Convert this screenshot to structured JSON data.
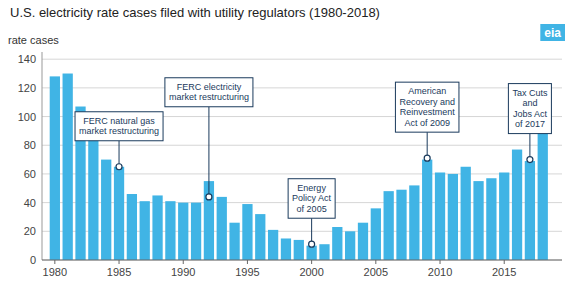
{
  "chart_data": {
    "type": "bar",
    "title": "U.S. electricity rate cases filed with utility regulators (1980-2018)",
    "ylabel": "rate cases",
    "logo": "eia",
    "x": [
      1980,
      1981,
      1982,
      1983,
      1984,
      1985,
      1986,
      1987,
      1988,
      1989,
      1990,
      1991,
      1992,
      1993,
      1994,
      1995,
      1996,
      1997,
      1998,
      1999,
      2000,
      2001,
      2002,
      2003,
      2004,
      2005,
      2006,
      2007,
      2008,
      2009,
      2010,
      2011,
      2012,
      2013,
      2014,
      2015,
      2016,
      2017,
      2018
    ],
    "values": [
      128,
      130,
      107,
      93,
      70,
      65,
      46,
      41,
      45,
      41,
      40,
      40,
      55,
      44,
      26,
      39,
      32,
      21,
      15,
      14,
      10,
      11,
      23,
      20,
      26,
      36,
      48,
      49,
      52,
      70,
      61,
      60,
      65,
      55,
      57,
      61,
      77,
      69,
      90
    ],
    "color": "#40b4e5",
    "xlim": [
      1979,
      2019.5
    ],
    "xticks": [
      1980,
      1985,
      1990,
      1995,
      2000,
      2005,
      2010,
      2015
    ],
    "ylim": [
      0,
      145
    ],
    "yticks": [
      0,
      20,
      40,
      60,
      80,
      100,
      120,
      140
    ],
    "grid": true,
    "annotations": [
      {
        "text": "FERC natural gas\nmarket restructuring",
        "x": 1985,
        "y": 65,
        "color": "#1a3a5c"
      },
      {
        "text": "FERC electricity\nmarket restructuring",
        "x": 1992,
        "y": 44,
        "color": "#1a3a5c"
      },
      {
        "text": "Energy\nPolicy Act\nof 2005",
        "x": 2000,
        "y": 11,
        "color": "#1a3a5c"
      },
      {
        "text": "American\nRecovery and\nReinvestment\nAct of 2009",
        "x": 2009,
        "y": 71,
        "color": "#1a3a5c"
      },
      {
        "text": "Tax Cuts\nand\nJobs Act\nof 2017",
        "x": 2017,
        "y": 70,
        "color": "#1a3a5c"
      }
    ]
  }
}
